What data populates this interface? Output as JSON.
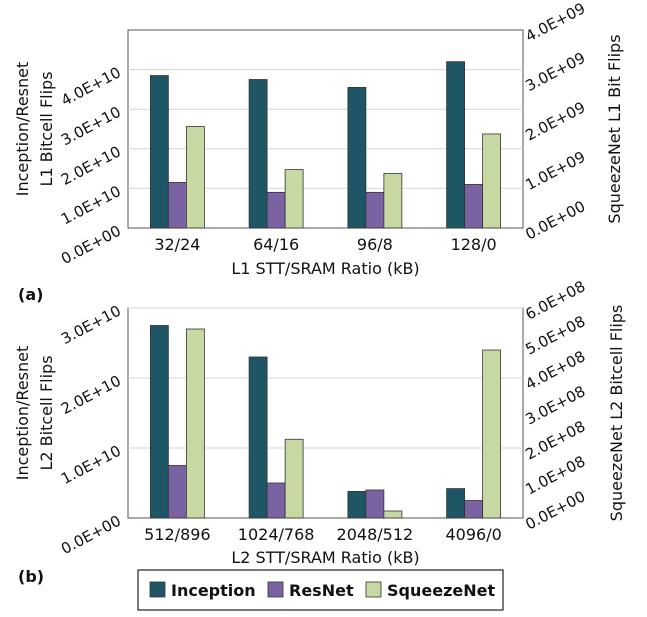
{
  "colors": {
    "inception": "#1f5666",
    "resnet": "#7b63a3",
    "squeezenet": "#c6d9a2",
    "grid": "#d4d4d4"
  },
  "legend": [
    "Inception",
    "ResNet",
    "SqueezeNet"
  ],
  "chart_data": [
    {
      "type": "bar",
      "panel_label": "(a)",
      "categories": [
        "32/24",
        "64/16",
        "96/8",
        "128/0"
      ],
      "xlabel": "L1 STT/SRAM Ratio (kB)",
      "ylabel_left": [
        "Inception/Resnet",
        "L1 Bitcell Flips"
      ],
      "ylabel_right": "SqueezeNet L1 Bit Flips",
      "ylim_left": [
        0,
        50000000000
      ],
      "ylim_right": [
        0,
        4000000000
      ],
      "yticks_left": [
        "0.0E+00",
        "1.0E+10",
        "2.0E+10",
        "3.0E+10",
        "4.0E+10"
      ],
      "yticks_right": [
        "0.0E+00",
        "1.0E+09",
        "2.0E+09",
        "3.0E+09",
        "4.0E+09"
      ],
      "series": [
        {
          "name": "Inception",
          "axis": "left",
          "values": [
            38500000000,
            37500000000,
            35500000000,
            42000000000
          ]
        },
        {
          "name": "ResNet",
          "axis": "left",
          "values": [
            11500000000,
            9000000000,
            9000000000,
            11000000000
          ]
        },
        {
          "name": "SqueezeNet",
          "axis": "right",
          "values": [
            2050000000,
            1180000000,
            1100000000,
            1900000000
          ]
        }
      ]
    },
    {
      "type": "bar",
      "panel_label": "(b)",
      "categories": [
        "512/896",
        "1024/768",
        "2048/512",
        "4096/0"
      ],
      "xlabel": "L2 STT/SRAM Ratio (kB)",
      "ylabel_left": [
        "Inception/Resnet",
        "L2 Bitcell Flips"
      ],
      "ylabel_right": "SqueezeNet L2 Bitcell Flips",
      "ylim_left": [
        0,
        30000000000
      ],
      "ylim_right": [
        0,
        600000000
      ],
      "yticks_left": [
        "0.0E+00",
        "1.0E+10",
        "2.0E+10",
        "3.0E+10"
      ],
      "yticks_right": [
        "0.0E+00",
        "1.0E+08",
        "2.0E+08",
        "3.0E+08",
        "4.0E+08",
        "5.0E+08",
        "6.0E+08"
      ],
      "series": [
        {
          "name": "Inception",
          "axis": "left",
          "values": [
            27500000000,
            23000000000,
            3800000000,
            4200000000
          ]
        },
        {
          "name": "ResNet",
          "axis": "left",
          "values": [
            7500000000,
            5000000000,
            4000000000,
            2500000000
          ]
        },
        {
          "name": "SqueezeNet",
          "axis": "right",
          "values": [
            540000000,
            225000000,
            20000000,
            480000000
          ]
        }
      ]
    }
  ]
}
